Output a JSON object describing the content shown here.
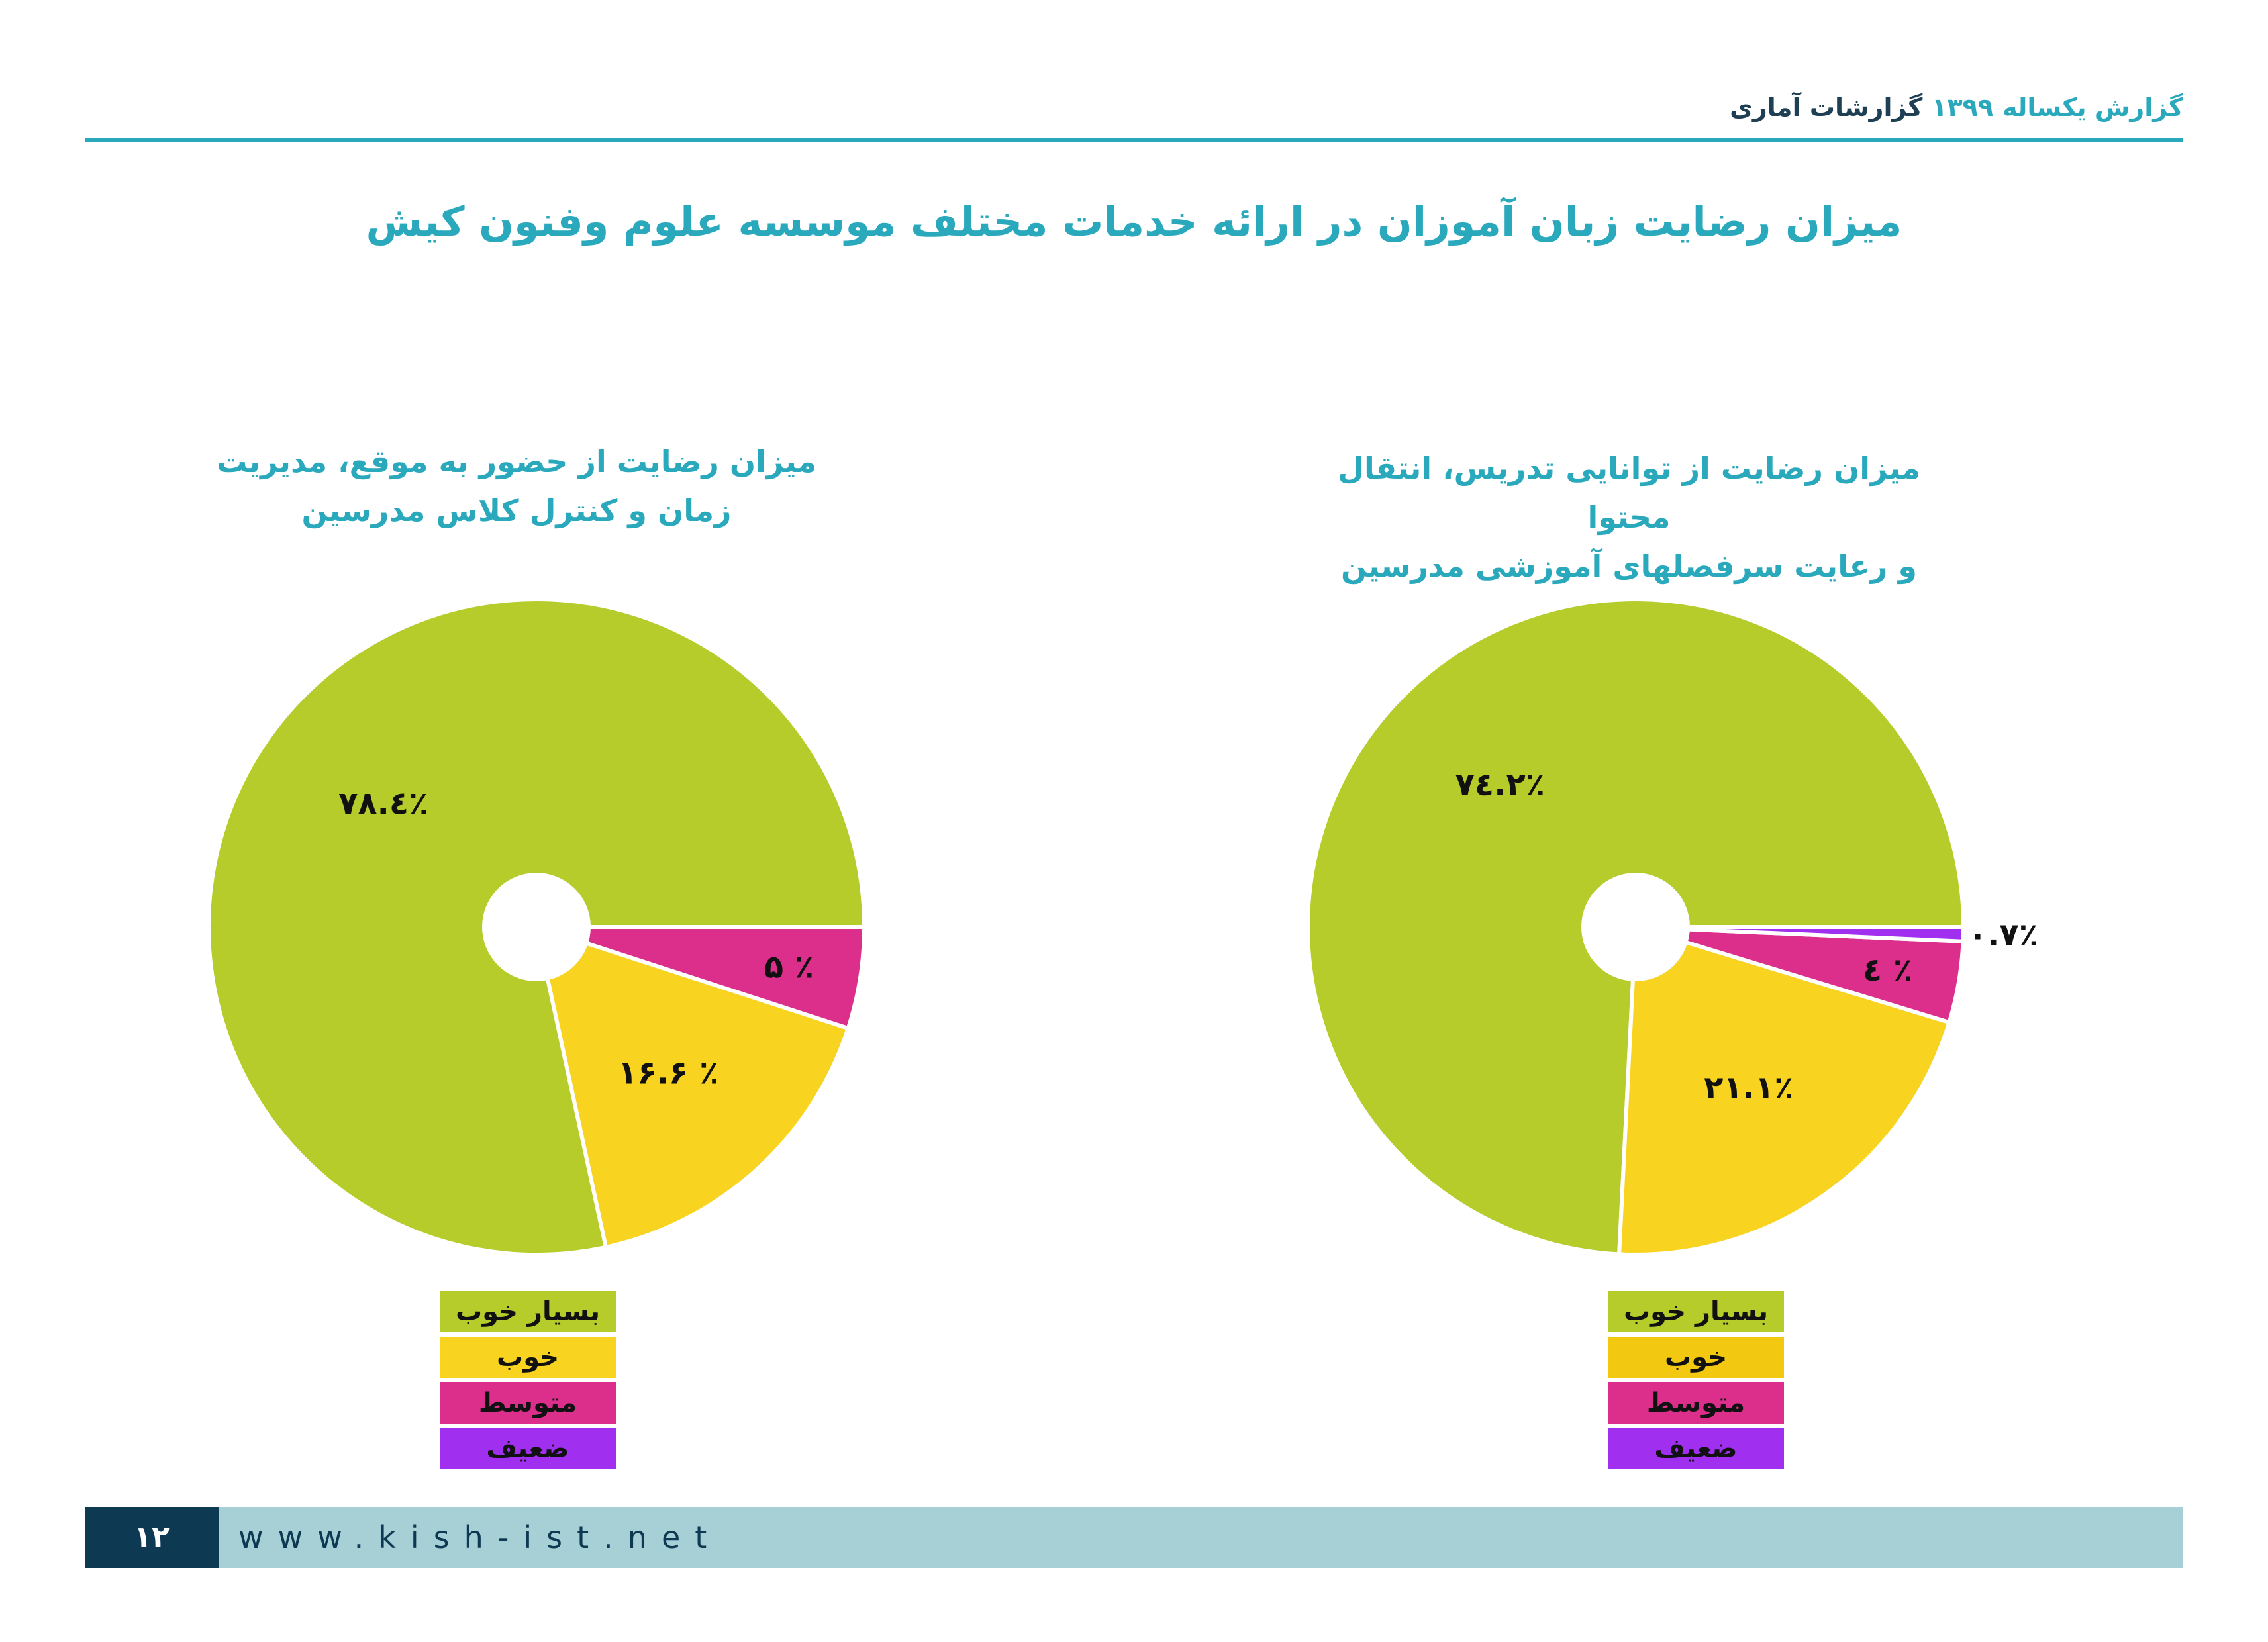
{
  "header": {
    "report_title": "گزارش یکساله",
    "year": "۱۳۹۹",
    "section": "گزارشات آماری"
  },
  "main_title": "میزان رضایت زبان آموزان در ارائه خدمات مختلف  موسسه علوم وفنون کیش",
  "colors": {
    "accent": "#2aa9bd",
    "very_good": "#b5cc2b",
    "good": "#f8d31f",
    "average": "#dc2f8c",
    "weak": "#a02ff0"
  },
  "chart_data": [
    {
      "type": "pie",
      "title_lines": [
        "میزان رضایت از حضور به موقع، مدیریت",
        "زمان و کنترل کلاس مدرسین"
      ],
      "categories": [
        "بسیار خوب",
        "خوب",
        "متوسط",
        "ضعیف"
      ],
      "values": [
        78.4,
        16.6,
        5,
        0
      ],
      "labels": [
        "۷۸.٤٪",
        "۱۶.۶ ٪",
        "۵ ٪",
        ""
      ],
      "legend": [
        "بسیار خوب",
        "خوب",
        "متوسط",
        "ضعیف"
      ],
      "legend_colors": [
        "#b5cc2b",
        "#f8d31f",
        "#dc2f8c",
        "#a02ff0"
      ]
    },
    {
      "type": "pie",
      "title_lines": [
        "میزان رضایت از توانایی تدریس، انتقال محتوا",
        "و رعایت سرفصلهای آموزشی مدرسین"
      ],
      "categories": [
        "بسیار خوب",
        "خوب",
        "متوسط",
        "ضعیف"
      ],
      "values": [
        74.2,
        21.1,
        4,
        0.7
      ],
      "labels": [
        "۷٤.۲٪",
        "۲۱.۱٪",
        "٤ ٪",
        "۰.۷٪"
      ],
      "legend": [
        "بسیار خوب",
        "خوب",
        "متوسط",
        "ضعیف"
      ],
      "legend_colors": [
        "#b5cc2b",
        "#f2c811",
        "#dc2f8c",
        "#a02ff0"
      ]
    }
  ],
  "footer": {
    "page_number": "۱۲",
    "url": "www.kish-ist.net"
  }
}
